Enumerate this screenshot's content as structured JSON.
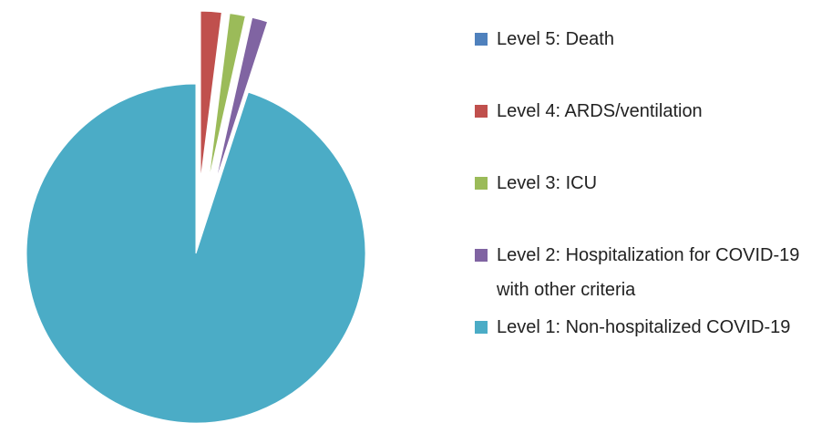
{
  "chart_data": {
    "type": "pie",
    "categories": [
      "Level 5: Death",
      "Level 4: ARDS/ventilation",
      "Level 3: ICU",
      "Level 2: Hospitalization for COVID-19 with other criteria",
      "Level 1: Non-hospitalized COVID-19"
    ],
    "values": [
      0,
      2,
      1.5,
      1.5,
      95
    ],
    "colors": [
      "#4f81bd",
      "#c0504d",
      "#9bbb59",
      "#8064a2",
      "#4bacc6"
    ],
    "exploded": [
      true,
      true,
      true,
      true,
      false
    ],
    "legend": "right"
  }
}
